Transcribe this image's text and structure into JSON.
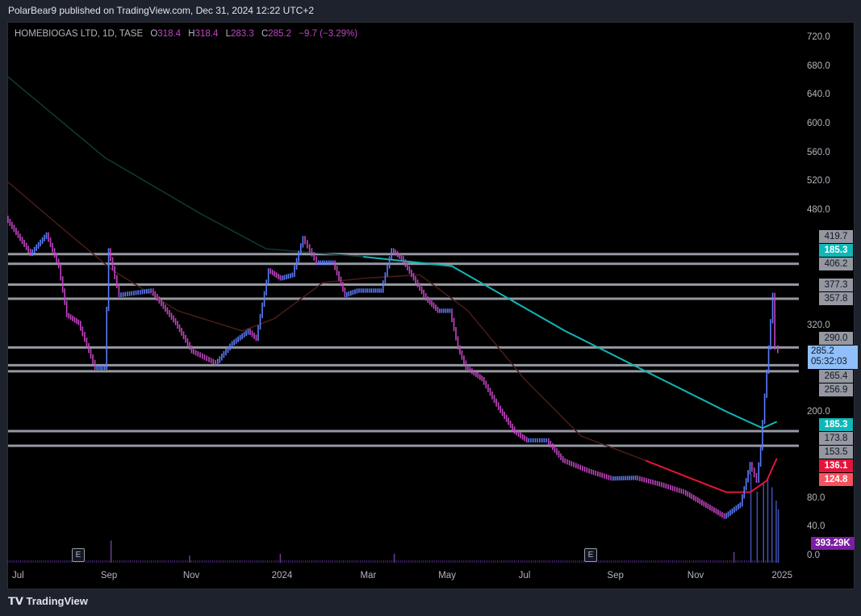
{
  "header": {
    "published": "PolarBear9 published on TradingView.com, Dec 31, 2024 12:22 UTC+2"
  },
  "legend": {
    "symbol": "HOMEBIOGAS LTD, 1D, TASE",
    "o_label": "O",
    "o": "318.4",
    "h_label": "H",
    "h": "318.4",
    "l_label": "L",
    "l": "283.3",
    "c_label": "C",
    "c": "285.2",
    "change": "−9.7 (−3.29%)"
  },
  "footer": {
    "brand": "TradingView"
  },
  "earnings_badges": [
    "E",
    "E"
  ],
  "chart_data": {
    "type": "line",
    "title": "HOMEBIOGAS LTD, 1D, TASE",
    "x_unit": "months since Jul 1 2023",
    "ylim": [
      0,
      720
    ],
    "y_ticks": [
      "720.0",
      "680.0",
      "640.0",
      "600.0",
      "560.0",
      "520.0",
      "480.0",
      "320.0",
      "200.0",
      "80.0",
      "40.0",
      "0.0"
    ],
    "y_tick_values": [
      720,
      680,
      640,
      600,
      560,
      520,
      480,
      320,
      200,
      80,
      40,
      0
    ],
    "x_ticks": [
      {
        "label": "Jul",
        "m": 0
      },
      {
        "label": "Sep",
        "m": 2.1
      },
      {
        "label": "Nov",
        "m": 4.05
      },
      {
        "label": "2024",
        "m": 6.15
      },
      {
        "label": "Mar",
        "m": 8.25
      },
      {
        "label": "May",
        "m": 10.1
      },
      {
        "label": "Jul",
        "m": 12.0
      },
      {
        "label": "Sep",
        "m": 14.1
      },
      {
        "label": "Nov",
        "m": 16.0
      },
      {
        "label": "2025",
        "m": 18.0
      }
    ],
    "price": [
      [
        -0.29,
        470
      ],
      [
        0.29,
        420
      ],
      [
        0.67,
        447
      ],
      [
        0.96,
        403
      ],
      [
        1.15,
        335
      ],
      [
        1.43,
        324
      ],
      [
        1.82,
        262
      ],
      [
        2.05,
        262
      ],
      [
        2.14,
        425
      ],
      [
        2.39,
        363
      ],
      [
        3.15,
        369
      ],
      [
        3.73,
        324
      ],
      [
        4.11,
        285
      ],
      [
        4.68,
        268
      ],
      [
        5.07,
        296
      ],
      [
        5.45,
        313
      ],
      [
        5.64,
        302
      ],
      [
        5.93,
        397
      ],
      [
        6.21,
        386
      ],
      [
        6.5,
        391
      ],
      [
        6.75,
        442
      ],
      [
        7.07,
        408
      ],
      [
        7.46,
        408
      ],
      [
        7.74,
        363
      ],
      [
        8.03,
        369
      ],
      [
        8.32,
        369
      ],
      [
        8.6,
        369
      ],
      [
        8.85,
        425
      ],
      [
        9.08,
        414
      ],
      [
        9.37,
        386
      ],
      [
        9.66,
        358
      ],
      [
        9.94,
        341
      ],
      [
        10.23,
        341
      ],
      [
        10.42,
        290
      ],
      [
        10.61,
        262
      ],
      [
        10.99,
        246
      ],
      [
        11.38,
        206
      ],
      [
        11.76,
        173
      ],
      [
        12.05,
        161
      ],
      [
        12.52,
        161
      ],
      [
        12.91,
        133
      ],
      [
        13.48,
        119
      ],
      [
        14.05,
        108
      ],
      [
        14.63,
        109
      ],
      [
        15.2,
        100
      ],
      [
        15.77,
        89
      ],
      [
        16.25,
        72
      ],
      [
        16.73,
        55
      ],
      [
        17.11,
        72
      ],
      [
        17.34,
        128
      ],
      [
        17.5,
        105
      ],
      [
        17.59,
        150
      ],
      [
        17.69,
        223
      ],
      [
        17.78,
        290
      ],
      [
        17.88,
        363
      ],
      [
        17.95,
        290
      ],
      [
        18.0,
        285.2
      ]
    ],
    "ma_long": {
      "color": "#10b7b7",
      "last": "185.3",
      "points": [
        [
          -0.29,
          666
        ],
        [
          2.0,
          554
        ],
        [
          4.3,
          475
        ],
        [
          5.83,
          427
        ],
        [
          8.13,
          416
        ],
        [
          10.23,
          403
        ],
        [
          12.91,
          313
        ],
        [
          14.82,
          257
        ],
        [
          16.73,
          201
        ],
        [
          17.59,
          178
        ],
        [
          17.93,
          187
        ]
      ]
    },
    "ma_short": {
      "color": "#e4143c",
      "last": "136.1",
      "points": [
        [
          -0.29,
          520
        ],
        [
          1.05,
          453
        ],
        [
          2.2,
          397
        ],
        [
          3.73,
          341
        ],
        [
          5.26,
          313
        ],
        [
          6.02,
          330
        ],
        [
          7.17,
          380
        ],
        [
          8.13,
          386
        ],
        [
          9.47,
          391
        ],
        [
          10.61,
          341
        ],
        [
          11.95,
          246
        ],
        [
          13.29,
          167
        ],
        [
          14.82,
          133
        ],
        [
          15.77,
          111
        ],
        [
          16.73,
          89
        ],
        [
          17.3,
          89
        ],
        [
          17.69,
          105
        ],
        [
          17.93,
          136
        ]
      ]
    },
    "levels": [
      "419.7",
      "406.2",
      "377.3",
      "357.8",
      "290.0",
      "265.4",
      "256.9",
      "173.8",
      "153.5"
    ],
    "level_values": [
      419.7,
      406.2,
      377.3,
      357.8,
      290.0,
      265.4,
      256.9,
      173.8,
      153.5
    ],
    "price_label": {
      "value": "285.2",
      "countdown": "05:32:03",
      "color": "#90bff9"
    },
    "extra_label": {
      "value": "124.8",
      "color": "#f7525f"
    },
    "volume": {
      "last": "393.29K",
      "color": "#7b1fa2",
      "spikes": [
        [
          2.14,
          0.25
        ],
        [
          4.0,
          0.08
        ],
        [
          6.15,
          0.1
        ],
        [
          8.85,
          0.1
        ],
        [
          16.9,
          0.12
        ],
        [
          17.3,
          1.0
        ],
        [
          17.45,
          0.8
        ],
        [
          17.6,
          0.9
        ],
        [
          17.7,
          0.95
        ],
        [
          17.8,
          0.85
        ],
        [
          17.9,
          0.7
        ],
        [
          17.95,
          0.6
        ]
      ]
    }
  }
}
